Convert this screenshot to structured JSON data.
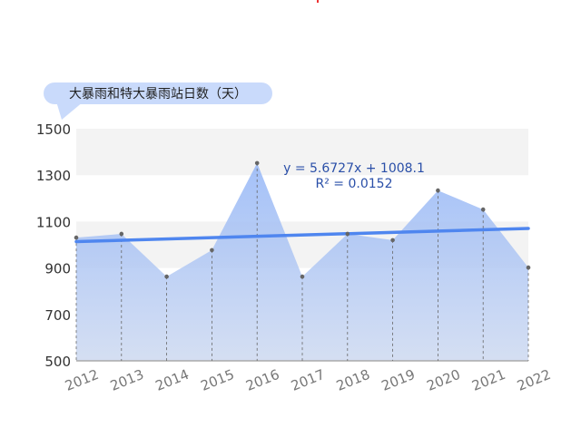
{
  "chart_data": {
    "type": "area",
    "title": "大暴雨和特大暴雨站日数（天）",
    "categories": [
      "2012",
      "2013",
      "2014",
      "2015",
      "2016",
      "2017",
      "2018",
      "2019",
      "2020",
      "2021",
      "2022"
    ],
    "values": [
      1031,
      1047,
      863,
      977,
      1352,
      863,
      1047,
      1020,
      1234,
      1152,
      902
    ],
    "ylim": [
      500,
      1500
    ],
    "yticks": [
      "500",
      "700",
      "900",
      "1100",
      "1300",
      "1500"
    ],
    "trendline": {
      "type": "linear",
      "equation": "y = 5.6727x + 1008.1",
      "r2": "R² = 0.0152",
      "slope": 5.6727,
      "intercept": 1008.1
    },
    "colors": {
      "area": "#a9c4f5",
      "trend": "#4f86ef",
      "points": "#666666",
      "band": "#f3f3f3",
      "label": "#2a4fa8"
    }
  }
}
